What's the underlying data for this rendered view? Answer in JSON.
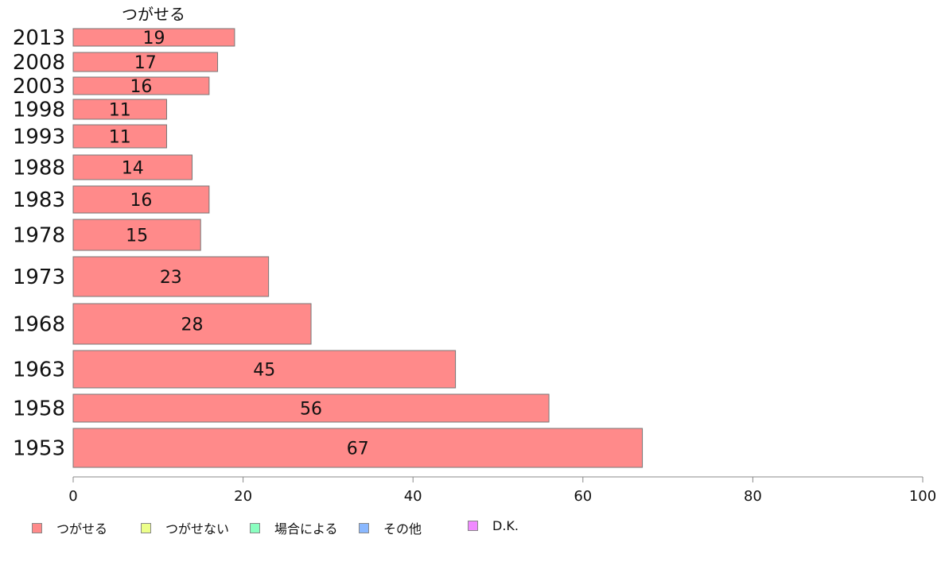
{
  "chart_data": {
    "type": "bar",
    "orientation": "horizontal",
    "categories": [
      "2013",
      "2008",
      "2003",
      "1998",
      "1993",
      "1988",
      "1983",
      "1978",
      "1973",
      "1968",
      "1963",
      "1958",
      "1953"
    ],
    "series": [
      {
        "name": "つがせる",
        "color": "#ff8a8a",
        "values": [
          19,
          17,
          16,
          11,
          11,
          14,
          16,
          15,
          23,
          28,
          45,
          56,
          67
        ]
      }
    ],
    "series_header": "つがせる",
    "xlim": [
      0,
      100
    ],
    "xticks": [
      0,
      20,
      40,
      60,
      80,
      100
    ],
    "grid": false,
    "legend": {
      "placement": "bottom-left",
      "entries": [
        {
          "label": "つがせる",
          "color": "#ff8a8a"
        },
        {
          "label": "つがせない",
          "color": "#ecff8a"
        },
        {
          "label": "場合による",
          "color": "#8affc0"
        },
        {
          "label": "その他",
          "color": "#8ab8ff"
        },
        {
          "label": "D.K.",
          "color": "#f08aff"
        }
      ]
    }
  }
}
